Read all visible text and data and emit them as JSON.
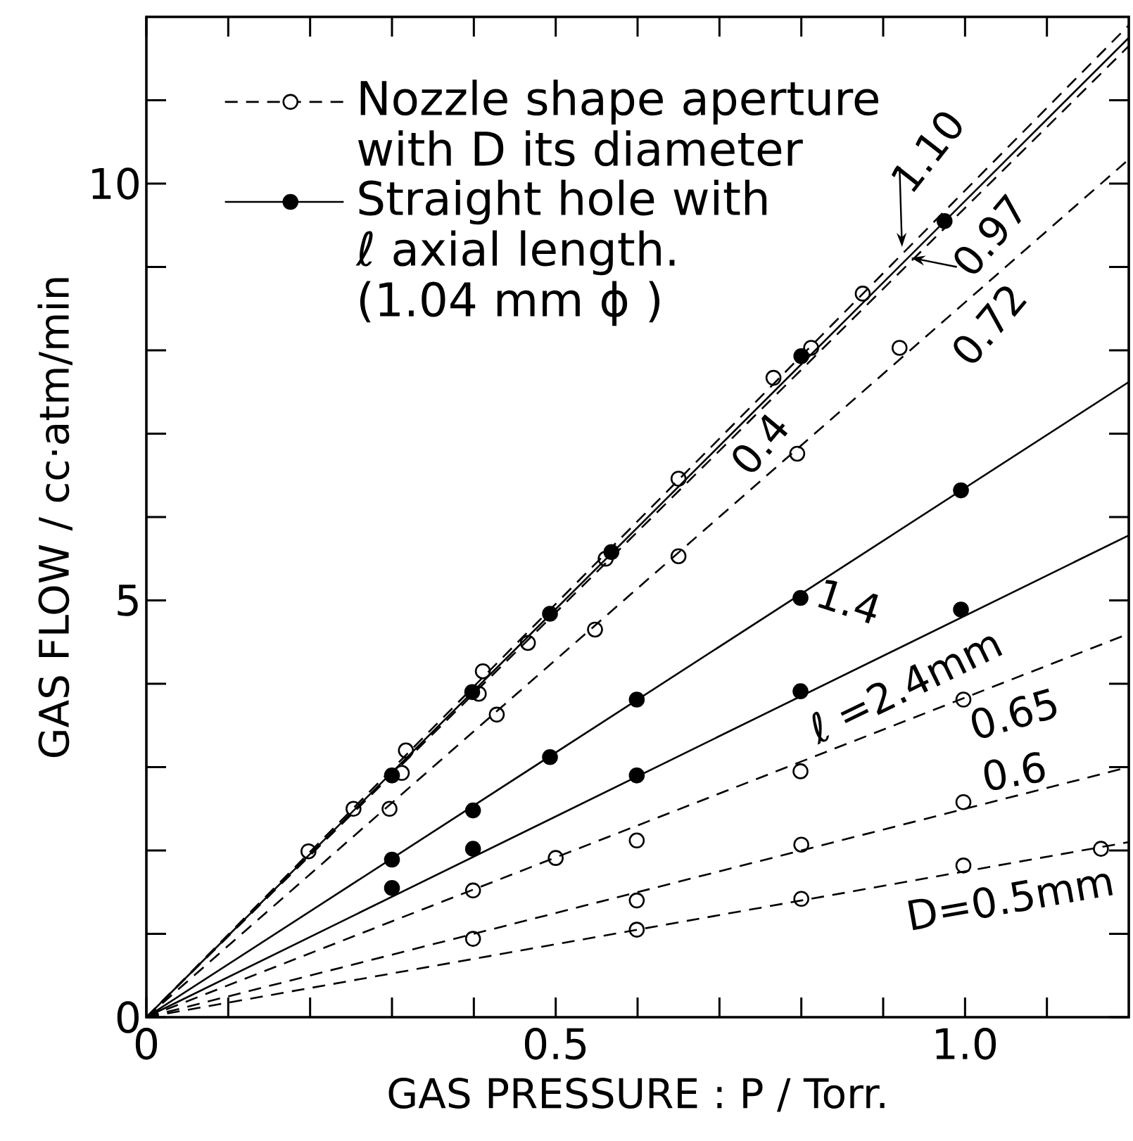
{
  "chart_data": {
    "type": "line",
    "xlabel": "GAS PRESSURE  :  P / Torr.",
    "ylabel": "GAS FLOW / cc·atm/min",
    "xlim": [
      0,
      1.2
    ],
    "ylim": [
      0,
      12
    ],
    "xticks": [
      0,
      {
        "value": 0.1,
        "label": null
      },
      {
        "value": 0.2,
        "label": null
      },
      {
        "value": 0.3,
        "label": null
      },
      {
        "value": 0.4,
        "label": null
      },
      0.5,
      {
        "value": 0.6,
        "label": null
      },
      {
        "value": 0.7,
        "label": null
      },
      {
        "value": 0.8,
        "label": null
      },
      {
        "value": 0.9,
        "label": null
      },
      {
        "value": 1.0,
        "label": "1.0"
      },
      {
        "value": 1.1,
        "label": null
      }
    ],
    "yticks": [
      0,
      {
        "value": 1,
        "label": null
      },
      {
        "value": 2,
        "label": null
      },
      {
        "value": 3,
        "label": null
      },
      {
        "value": 4,
        "label": null
      },
      5,
      {
        "value": 6,
        "label": null
      },
      {
        "value": 7,
        "label": null
      },
      {
        "value": 8,
        "label": null
      },
      {
        "value": 9,
        "label": null
      },
      10,
      {
        "value": 11,
        "label": null
      }
    ],
    "legend": "top left",
    "series": [
      {
        "name": "Nozzle shape aperture with D its diameter",
        "line_style": "dashed",
        "color": "#000000",
        "x": [
          0,
          1.2
        ],
        "values": [
          0,
          11.9
        ]
      },
      {
        "type": "scatter",
        "marker": "circle",
        "color": "#000000",
        "x": [
          0.198,
          0.253,
          0.317,
          0.411,
          0.561,
          0.65,
          0.766,
          0.875
        ],
        "values": [
          1.99,
          2.5,
          3.2,
          4.15,
          5.5,
          6.46,
          7.67,
          8.68
        ]
      },
      {
        "name": "Straight hole with ℓ axial length. (1.04 mm ϕ )",
        "line_style": "solid",
        "color": "#000000",
        "x": [
          0,
          1.2
        ],
        "values": [
          0,
          11.75
        ]
      },
      {
        "type": "scatter",
        "marker": "circle*",
        "color": "#000000",
        "x": [
          0.3,
          0.398,
          0.493,
          0.568,
          0.8,
          0.975
        ],
        "values": [
          2.9,
          3.9,
          4.84,
          5.58,
          7.93,
          9.55
        ]
      },
      {
        "line_style": "dashed",
        "color": "#000000",
        "x": [
          0,
          1.2
        ],
        "values": [
          0,
          11.65
        ]
      },
      {
        "type": "scatter",
        "marker": "circle",
        "color": "#000000",
        "x": [
          0.312,
          0.406,
          0.466,
          0.812
        ],
        "values": [
          2.93,
          3.88,
          4.49,
          8.03
        ]
      },
      {
        "line_style": "dashed",
        "color": "#000000",
        "x": [
          0,
          1.2
        ],
        "values": [
          0,
          10.29
        ]
      },
      {
        "type": "scatter",
        "marker": "circle",
        "color": "#000000",
        "x": [
          0.297,
          0.428,
          0.548,
          0.65,
          0.795,
          0.92
        ],
        "values": [
          2.5,
          3.63,
          4.65,
          5.53,
          6.76,
          8.03
        ]
      },
      {
        "line_style": "solid",
        "color": "#000000",
        "x": [
          0,
          1.2
        ],
        "values": [
          0,
          7.62
        ]
      },
      {
        "type": "scatter",
        "marker": "circle*",
        "color": "#000000",
        "x": [
          0.3,
          0.399,
          0.493,
          0.599,
          0.799,
          0.995
        ],
        "values": [
          1.89,
          2.48,
          3.12,
          3.81,
          5.03,
          6.32
        ]
      },
      {
        "line_style": "solid",
        "color": "#000000",
        "x": [
          0,
          1.2
        ],
        "values": [
          0,
          5.78
        ]
      },
      {
        "type": "scatter",
        "marker": "circle*",
        "color": "#000000",
        "x": [
          0.3,
          0.399,
          0.599,
          0.799,
          0.995
        ],
        "values": [
          1.55,
          2.02,
          2.9,
          3.91,
          4.89
        ]
      },
      {
        "line_style": "dashed",
        "color": "#000000",
        "x": [
          0,
          1.2
        ],
        "values": [
          0,
          4.6
        ]
      },
      {
        "type": "scatter",
        "marker": "circle",
        "color": "#000000",
        "x": [
          0.399,
          0.5,
          0.599,
          0.799,
          0.998
        ],
        "values": [
          1.52,
          1.91,
          2.12,
          2.95,
          3.81
        ]
      },
      {
        "line_style": "dashed",
        "color": "#000000",
        "x": [
          0,
          1.2
        ],
        "values": [
          0,
          3.0
        ]
      },
      {
        "type": "scatter",
        "marker": "circle",
        "color": "#000000",
        "x": [
          0.399,
          0.599,
          0.8,
          0.998
        ],
        "values": [
          0.94,
          1.4,
          2.07,
          2.58
        ]
      },
      {
        "line_style": "dashed",
        "color": "#000000",
        "x": [
          0,
          1.2
        ],
        "values": [
          0,
          2.1
        ]
      },
      {
        "type": "scatter",
        "marker": "circle",
        "color": "#000000",
        "x": [
          0.599,
          0.8,
          0.998,
          1.166
        ],
        "values": [
          1.05,
          1.42,
          1.82,
          2.02
        ]
      }
    ],
    "annotations": [
      "1.10",
      "0.97",
      "0.72",
      "0.4",
      "1.4",
      "ℓ =2.4mm",
      "0.65",
      "0.6",
      "D=0.5mm"
    ]
  }
}
